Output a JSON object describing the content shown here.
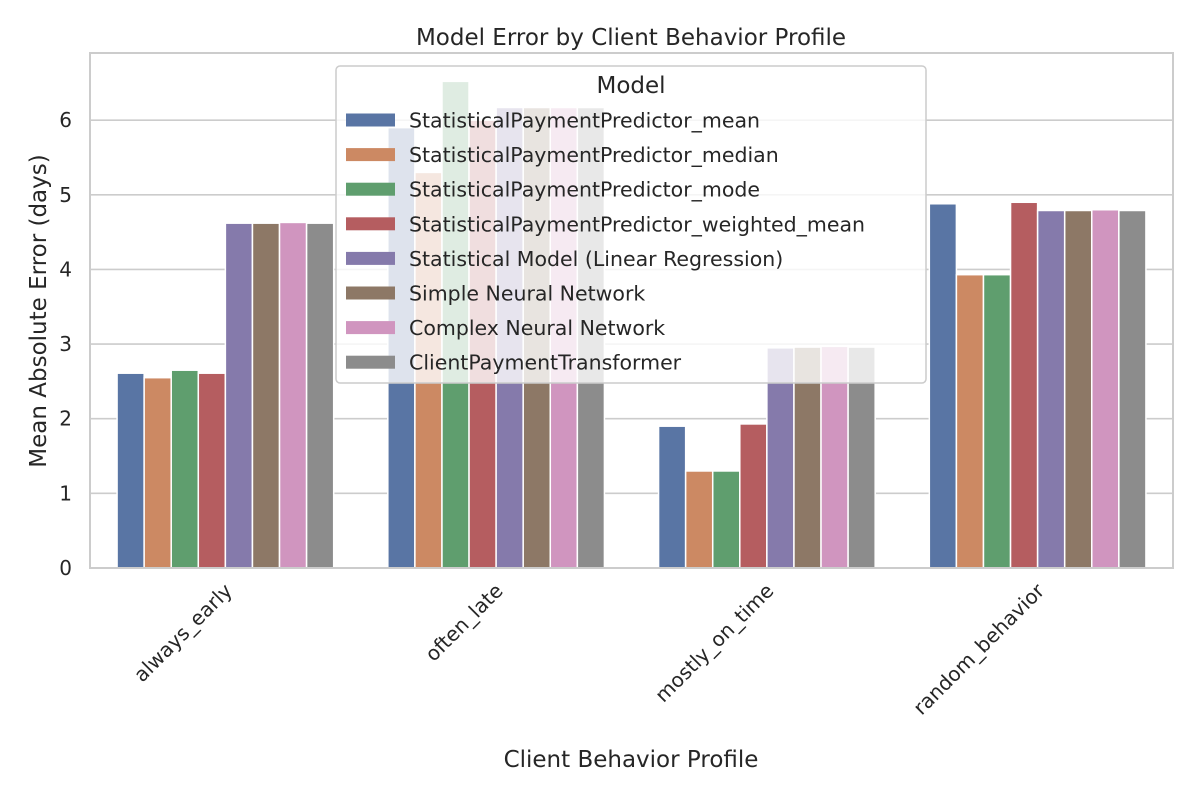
{
  "chart_data": {
    "type": "bar",
    "title": "Model Error by Client Behavior Profile",
    "xlabel": "Client Behavior Profile",
    "ylabel": "Mean Absolute Error (days)",
    "categories": [
      "always_early",
      "often_late",
      "mostly_on_time",
      "random_behavior"
    ],
    "ylim": [
      0,
      6.9
    ],
    "yticks": [
      0,
      1,
      2,
      3,
      4,
      5,
      6
    ],
    "grid": true,
    "legend": {
      "title": "Model",
      "placement": "top-center"
    },
    "series": [
      {
        "name": "StatisticalPaymentPredictor_mean",
        "color": "#5975a4",
        "values": [
          2.61,
          5.9,
          1.9,
          4.88
        ]
      },
      {
        "name": "StatisticalPaymentPredictor_median",
        "color": "#cc8963",
        "values": [
          2.55,
          5.3,
          1.3,
          3.93
        ]
      },
      {
        "name": "StatisticalPaymentPredictor_mode",
        "color": "#5f9e6e",
        "values": [
          2.65,
          6.52,
          1.3,
          3.93
        ]
      },
      {
        "name": "StatisticalPaymentPredictor_weighted_mean",
        "color": "#b55d60",
        "values": [
          2.61,
          6.0,
          1.93,
          4.9
        ]
      },
      {
        "name": "Statistical Model (Linear Regression)",
        "color": "#857aab",
        "values": [
          4.62,
          6.17,
          2.95,
          4.79
        ]
      },
      {
        "name": "Simple Neural Network",
        "color": "#8d7866",
        "values": [
          4.62,
          6.17,
          2.96,
          4.79
        ]
      },
      {
        "name": "Complex Neural Network",
        "color": "#d095bf",
        "values": [
          4.63,
          6.17,
          2.97,
          4.8
        ]
      },
      {
        "name": "ClientPaymentTransformer",
        "color": "#8c8c8c",
        "values": [
          4.62,
          6.17,
          2.96,
          4.79
        ]
      }
    ]
  }
}
